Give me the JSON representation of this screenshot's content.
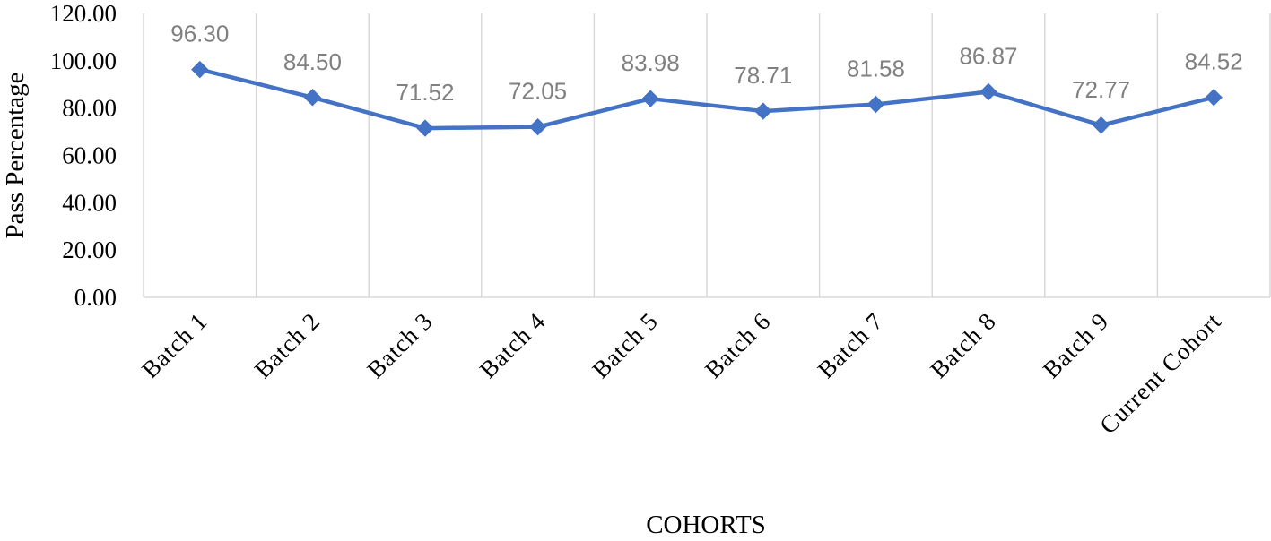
{
  "chart_data": {
    "type": "line",
    "title": "",
    "xlabel": "COHORTS",
    "ylabel": "Pass Percentage",
    "categories": [
      "Batch 1",
      "Batch 2",
      "Batch 3",
      "Batch 4",
      "Batch 5",
      "Batch 6",
      "Batch 7",
      "Batch 8",
      "Batch 9",
      "Current Cohort"
    ],
    "series": [
      {
        "values": [
          96.3,
          84.5,
          71.52,
          72.05,
          83.98,
          78.71,
          81.58,
          86.87,
          72.77,
          84.52
        ]
      }
    ],
    "data_labels": [
      "96.30",
      "84.50",
      "71.52",
      "72.05",
      "83.98",
      "78.71",
      "81.58",
      "86.87",
      "72.77",
      "84.52"
    ],
    "y_ticks": [
      "0.00",
      "20.00",
      "40.00",
      "60.00",
      "80.00",
      "100.00",
      "120.00"
    ],
    "ylim": [
      0,
      120
    ],
    "grid": "vertical",
    "legend": "none",
    "marker": "diamond",
    "colors": {
      "line": "#4472C4",
      "grid": "#D9D9D9",
      "data_label": "#808080"
    }
  }
}
